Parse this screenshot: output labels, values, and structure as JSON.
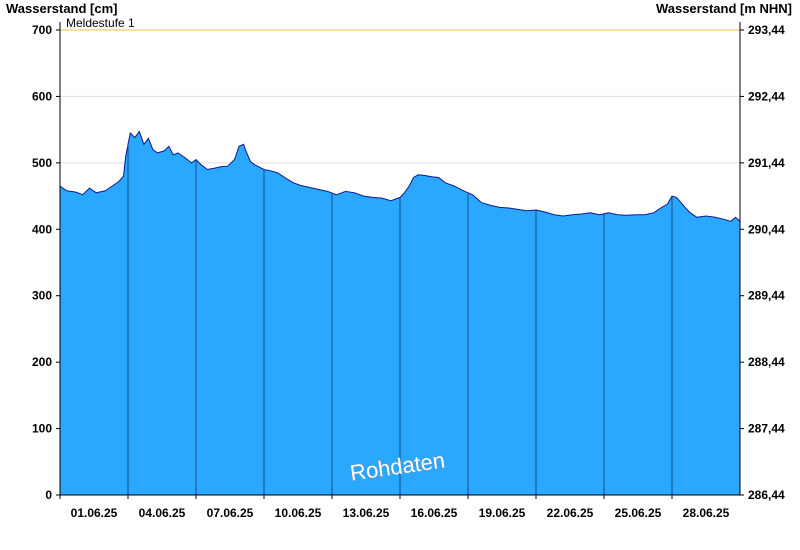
{
  "chart_data": {
    "type": "area",
    "ylabel_left": "Wasserstand [cm]",
    "ylabel_right": "Wasserstand [m NHN]",
    "ylim": [
      0,
      700
    ],
    "yticks": [
      0,
      100,
      200,
      300,
      400,
      500,
      600,
      700
    ],
    "right_yticks": [
      "286,44",
      "287,44",
      "288,44",
      "289,44",
      "290,44",
      "291,44",
      "292,44",
      "293,44"
    ],
    "x_range_days": [
      0,
      30
    ],
    "xticks": [
      {
        "day": 0,
        "label": "01.06.25"
      },
      {
        "day": 3,
        "label": "04.06.25"
      },
      {
        "day": 6,
        "label": "07.06.25"
      },
      {
        "day": 9,
        "label": "10.06.25"
      },
      {
        "day": 12,
        "label": "13.06.25"
      },
      {
        "day": 15,
        "label": "16.06.25"
      },
      {
        "day": 18,
        "label": "19.06.25"
      },
      {
        "day": 21,
        "label": "22.06.25"
      },
      {
        "day": 24,
        "label": "25.06.25"
      },
      {
        "day": 27,
        "label": "28.06.25"
      }
    ],
    "threshold": {
      "label": "Meldestufe 1",
      "value": 700,
      "color": "#f5c242"
    },
    "watermark": "Rohdaten",
    "fill_color": "#2aa7ff",
    "line_color": "#0b1a8c",
    "series": [
      {
        "x": [
          0,
          0.3,
          0.7,
          1.0,
          1.3,
          1.6,
          2.0,
          2.3,
          2.6,
          2.8,
          2.9,
          3.0,
          3.1,
          3.3,
          3.5,
          3.7,
          3.9,
          4.1,
          4.3,
          4.6,
          4.8,
          5.0,
          5.2,
          5.5,
          5.8,
          6.0,
          6.2,
          6.5,
          6.8,
          7.1,
          7.4,
          7.7,
          7.9,
          8.1,
          8.2,
          8.4,
          8.6,
          9.0,
          9.3,
          9.6,
          10.0,
          10.3,
          10.6,
          11.0,
          11.4,
          11.8,
          12.2,
          12.6,
          13.0,
          13.4,
          13.8,
          14.2,
          14.6,
          15.0,
          15.2,
          15.4,
          15.6,
          15.8,
          16.1,
          16.4,
          16.7,
          17.0,
          17.4,
          17.8,
          18.2,
          18.6,
          19.0,
          19.4,
          19.8,
          20.2,
          20.6,
          21.0,
          21.4,
          21.8,
          22.2,
          22.6,
          23.0,
          23.4,
          23.8,
          24.2,
          24.6,
          25.0,
          25.4,
          25.8,
          26.2,
          26.5,
          26.8,
          27.0,
          27.2,
          27.4,
          27.6,
          27.8,
          28.1,
          28.5,
          28.9,
          29.3,
          29.6,
          29.8,
          30.0
        ],
        "values": [
          465,
          458,
          456,
          452,
          462,
          455,
          458,
          465,
          472,
          480,
          510,
          528,
          545,
          538,
          547,
          528,
          537,
          520,
          515,
          518,
          525,
          512,
          515,
          508,
          500,
          505,
          498,
          490,
          492,
          494,
          495,
          505,
          525,
          528,
          518,
          502,
          497,
          490,
          488,
          485,
          476,
          470,
          466,
          463,
          460,
          457,
          452,
          457,
          455,
          450,
          448,
          447,
          443,
          448,
          455,
          465,
          478,
          482,
          481,
          479,
          478,
          470,
          465,
          458,
          452,
          440,
          436,
          433,
          432,
          430,
          428,
          429,
          426,
          422,
          420,
          422,
          423,
          425,
          422,
          425,
          422,
          421,
          422,
          422,
          425,
          432,
          438,
          450,
          448,
          440,
          432,
          425,
          418,
          420,
          418,
          415,
          412,
          418,
          412
        ]
      }
    ]
  }
}
